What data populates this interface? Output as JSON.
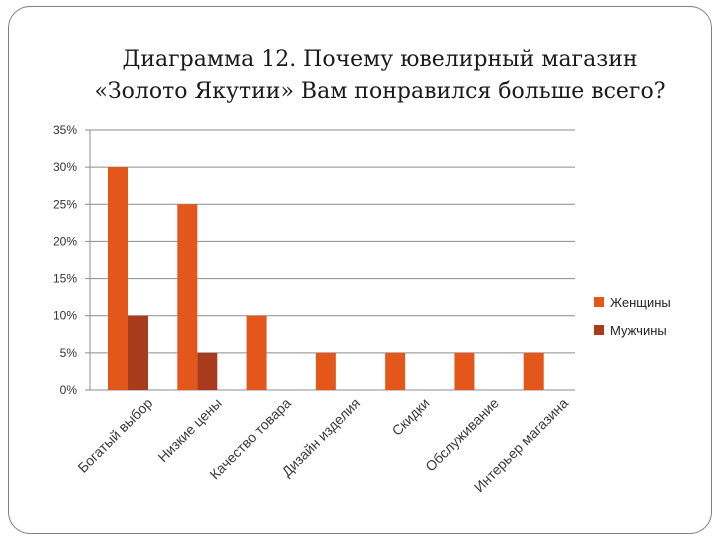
{
  "chart_data": {
    "type": "bar",
    "title_lines": [
      "Диаграмма 12. Почему ювелирный магазин",
      "«Золото Якутии» Вам понравился больше всего?"
    ],
    "categories": [
      "Богатый выбор",
      "Низкие цены",
      "Качество товара",
      "Дизайн изделия",
      "Скидки",
      "Обслуживание",
      "Интерьер магазина"
    ],
    "series": [
      {
        "name": "Женщины",
        "values": [
          30,
          25,
          10,
          5,
          5,
          5,
          5
        ],
        "color": "#e4571b"
      },
      {
        "name": "Мужчины",
        "values": [
          10,
          5,
          0,
          0,
          0,
          0,
          0
        ],
        "color": "#a83a1e"
      }
    ],
    "yticks": [
      "0%",
      "5%",
      "10%",
      "15%",
      "20%",
      "25%",
      "30%",
      "35%"
    ],
    "ylim": [
      0,
      35
    ],
    "grid": true,
    "legend_position": "right"
  }
}
